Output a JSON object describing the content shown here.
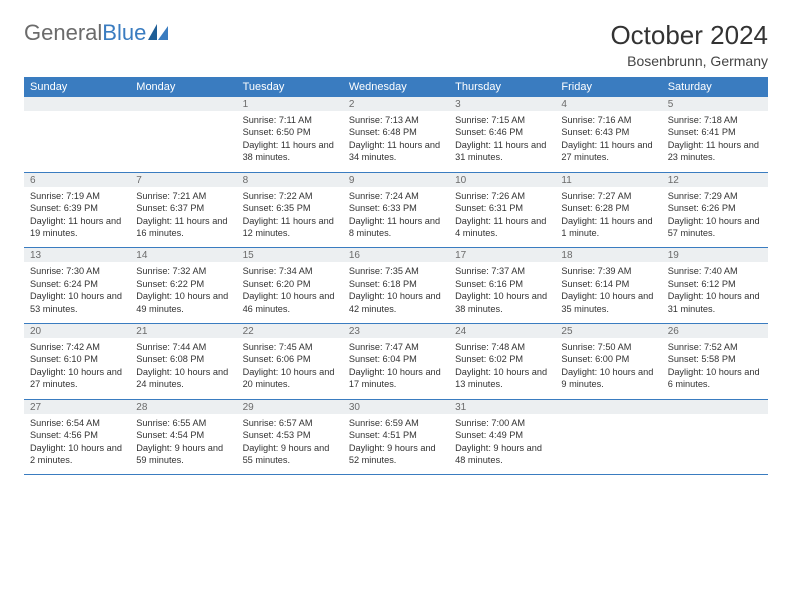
{
  "logo": {
    "text1": "General",
    "text2": "Blue"
  },
  "title": "October 2024",
  "location": "Bosenbrunn, Germany",
  "colors": {
    "header_bg": "#3a7cc0",
    "header_text": "#ffffff",
    "daynum_bg": "#eceff1",
    "daynum_text": "#6b6b6b",
    "cell_text": "#333333",
    "rule": "#3a7cc0",
    "logo_gray": "#6b6b6b",
    "logo_blue": "#3a7cc0"
  },
  "fonts": {
    "base": "Arial",
    "title_size": 26,
    "header_size": 11,
    "cell_size": 9
  },
  "weekdays": [
    "Sunday",
    "Monday",
    "Tuesday",
    "Wednesday",
    "Thursday",
    "Friday",
    "Saturday"
  ],
  "weeks": [
    [
      {
        "empty": true
      },
      {
        "empty": true
      },
      {
        "day": "1",
        "sunrise": "Sunrise: 7:11 AM",
        "sunset": "Sunset: 6:50 PM",
        "daylight": "Daylight: 11 hours and 38 minutes."
      },
      {
        "day": "2",
        "sunrise": "Sunrise: 7:13 AM",
        "sunset": "Sunset: 6:48 PM",
        "daylight": "Daylight: 11 hours and 34 minutes."
      },
      {
        "day": "3",
        "sunrise": "Sunrise: 7:15 AM",
        "sunset": "Sunset: 6:46 PM",
        "daylight": "Daylight: 11 hours and 31 minutes."
      },
      {
        "day": "4",
        "sunrise": "Sunrise: 7:16 AM",
        "sunset": "Sunset: 6:43 PM",
        "daylight": "Daylight: 11 hours and 27 minutes."
      },
      {
        "day": "5",
        "sunrise": "Sunrise: 7:18 AM",
        "sunset": "Sunset: 6:41 PM",
        "daylight": "Daylight: 11 hours and 23 minutes."
      }
    ],
    [
      {
        "day": "6",
        "sunrise": "Sunrise: 7:19 AM",
        "sunset": "Sunset: 6:39 PM",
        "daylight": "Daylight: 11 hours and 19 minutes."
      },
      {
        "day": "7",
        "sunrise": "Sunrise: 7:21 AM",
        "sunset": "Sunset: 6:37 PM",
        "daylight": "Daylight: 11 hours and 16 minutes."
      },
      {
        "day": "8",
        "sunrise": "Sunrise: 7:22 AM",
        "sunset": "Sunset: 6:35 PM",
        "daylight": "Daylight: 11 hours and 12 minutes."
      },
      {
        "day": "9",
        "sunrise": "Sunrise: 7:24 AM",
        "sunset": "Sunset: 6:33 PM",
        "daylight": "Daylight: 11 hours and 8 minutes."
      },
      {
        "day": "10",
        "sunrise": "Sunrise: 7:26 AM",
        "sunset": "Sunset: 6:31 PM",
        "daylight": "Daylight: 11 hours and 4 minutes."
      },
      {
        "day": "11",
        "sunrise": "Sunrise: 7:27 AM",
        "sunset": "Sunset: 6:28 PM",
        "daylight": "Daylight: 11 hours and 1 minute."
      },
      {
        "day": "12",
        "sunrise": "Sunrise: 7:29 AM",
        "sunset": "Sunset: 6:26 PM",
        "daylight": "Daylight: 10 hours and 57 minutes."
      }
    ],
    [
      {
        "day": "13",
        "sunrise": "Sunrise: 7:30 AM",
        "sunset": "Sunset: 6:24 PM",
        "daylight": "Daylight: 10 hours and 53 minutes."
      },
      {
        "day": "14",
        "sunrise": "Sunrise: 7:32 AM",
        "sunset": "Sunset: 6:22 PM",
        "daylight": "Daylight: 10 hours and 49 minutes."
      },
      {
        "day": "15",
        "sunrise": "Sunrise: 7:34 AM",
        "sunset": "Sunset: 6:20 PM",
        "daylight": "Daylight: 10 hours and 46 minutes."
      },
      {
        "day": "16",
        "sunrise": "Sunrise: 7:35 AM",
        "sunset": "Sunset: 6:18 PM",
        "daylight": "Daylight: 10 hours and 42 minutes."
      },
      {
        "day": "17",
        "sunrise": "Sunrise: 7:37 AM",
        "sunset": "Sunset: 6:16 PM",
        "daylight": "Daylight: 10 hours and 38 minutes."
      },
      {
        "day": "18",
        "sunrise": "Sunrise: 7:39 AM",
        "sunset": "Sunset: 6:14 PM",
        "daylight": "Daylight: 10 hours and 35 minutes."
      },
      {
        "day": "19",
        "sunrise": "Sunrise: 7:40 AM",
        "sunset": "Sunset: 6:12 PM",
        "daylight": "Daylight: 10 hours and 31 minutes."
      }
    ],
    [
      {
        "day": "20",
        "sunrise": "Sunrise: 7:42 AM",
        "sunset": "Sunset: 6:10 PM",
        "daylight": "Daylight: 10 hours and 27 minutes."
      },
      {
        "day": "21",
        "sunrise": "Sunrise: 7:44 AM",
        "sunset": "Sunset: 6:08 PM",
        "daylight": "Daylight: 10 hours and 24 minutes."
      },
      {
        "day": "22",
        "sunrise": "Sunrise: 7:45 AM",
        "sunset": "Sunset: 6:06 PM",
        "daylight": "Daylight: 10 hours and 20 minutes."
      },
      {
        "day": "23",
        "sunrise": "Sunrise: 7:47 AM",
        "sunset": "Sunset: 6:04 PM",
        "daylight": "Daylight: 10 hours and 17 minutes."
      },
      {
        "day": "24",
        "sunrise": "Sunrise: 7:48 AM",
        "sunset": "Sunset: 6:02 PM",
        "daylight": "Daylight: 10 hours and 13 minutes."
      },
      {
        "day": "25",
        "sunrise": "Sunrise: 7:50 AM",
        "sunset": "Sunset: 6:00 PM",
        "daylight": "Daylight: 10 hours and 9 minutes."
      },
      {
        "day": "26",
        "sunrise": "Sunrise: 7:52 AM",
        "sunset": "Sunset: 5:58 PM",
        "daylight": "Daylight: 10 hours and 6 minutes."
      }
    ],
    [
      {
        "day": "27",
        "sunrise": "Sunrise: 6:54 AM",
        "sunset": "Sunset: 4:56 PM",
        "daylight": "Daylight: 10 hours and 2 minutes."
      },
      {
        "day": "28",
        "sunrise": "Sunrise: 6:55 AM",
        "sunset": "Sunset: 4:54 PM",
        "daylight": "Daylight: 9 hours and 59 minutes."
      },
      {
        "day": "29",
        "sunrise": "Sunrise: 6:57 AM",
        "sunset": "Sunset: 4:53 PM",
        "daylight": "Daylight: 9 hours and 55 minutes."
      },
      {
        "day": "30",
        "sunrise": "Sunrise: 6:59 AM",
        "sunset": "Sunset: 4:51 PM",
        "daylight": "Daylight: 9 hours and 52 minutes."
      },
      {
        "day": "31",
        "sunrise": "Sunrise: 7:00 AM",
        "sunset": "Sunset: 4:49 PM",
        "daylight": "Daylight: 9 hours and 48 minutes."
      },
      {
        "empty": true
      },
      {
        "empty": true
      }
    ]
  ]
}
